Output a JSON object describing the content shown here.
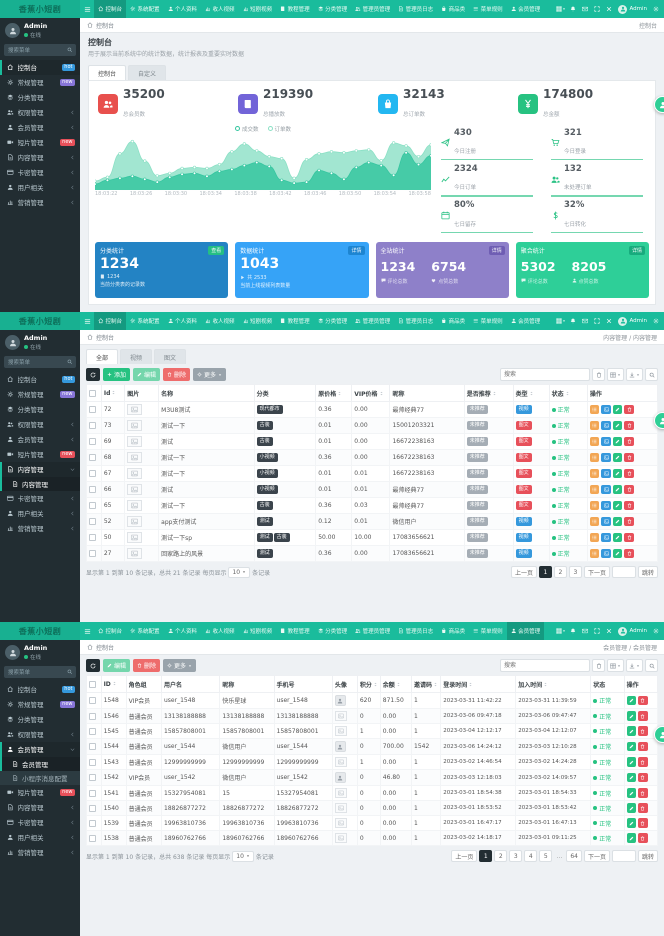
{
  "brand": "香蕉小短剧",
  "colors": {
    "navbar": "#1abc9c",
    "navbar_active": "#149a80",
    "sidebar": "#222d32",
    "success": "#26c281",
    "danger": "#e7505a",
    "warning": "#f2a654",
    "info": "#3598dc"
  },
  "navbar": {
    "user": "Admin",
    "menu": [
      {
        "label": "控制台",
        "icon": "home-icon"
      },
      {
        "label": "系统配置",
        "icon": "gear-icon"
      },
      {
        "label": "个人资料",
        "icon": "user-icon"
      },
      {
        "label": "收人视频",
        "icon": "chart-icon"
      },
      {
        "label": "短剧视频",
        "icon": "chart-icon"
      },
      {
        "label": "教程管理",
        "icon": "book-icon"
      },
      {
        "label": "分类管理",
        "icon": "layers-icon"
      },
      {
        "label": "管理员管理",
        "icon": "users-icon"
      },
      {
        "label": "管理员日志",
        "icon": "file-icon"
      },
      {
        "label": "商品类",
        "icon": "bag-icon"
      },
      {
        "label": "菜单规则",
        "icon": "menu-icon"
      },
      {
        "label": "会员管理",
        "icon": "user-icon"
      }
    ]
  },
  "sidebar": {
    "user_name": "Admin",
    "user_status": "在线",
    "search_placeholder": "搜索菜单",
    "menu": [
      {
        "label": "控制台",
        "icon": "home-icon",
        "badge": "hot",
        "badge_color": "#3598dc"
      },
      {
        "label": "常规管理",
        "icon": "gear-icon",
        "badge": "new",
        "badge_color": "#8775d8"
      },
      {
        "label": "分类管理",
        "icon": "layers-icon"
      },
      {
        "label": "权限管理",
        "icon": "users-icon",
        "arrow": true
      },
      {
        "label": "会员管理",
        "icon": "user-icon",
        "arrow": true
      },
      {
        "label": "短片管理",
        "icon": "video-icon",
        "badge": "new",
        "badge_color": "#e7505a"
      },
      {
        "label": "内容管理",
        "icon": "file-icon",
        "arrow": true
      },
      {
        "label": "卡密管理",
        "icon": "card-icon",
        "arrow": true
      },
      {
        "label": "用户相关",
        "icon": "user-icon",
        "arrow": true
      },
      {
        "label": "营销管理",
        "icon": "chart-icon",
        "arrow": true
      }
    ]
  },
  "panels": [
    {
      "type": "dashboard",
      "nav_active": 0,
      "sidebar": {
        "active": 0
      },
      "breadcrumb": {
        "home": "控制台",
        "trail": "控制台"
      },
      "header": {
        "title": "控制台",
        "subtitle": "用于展示当前系统中的统计数据，统计报表及重要实时数据"
      },
      "tabs": [
        {
          "label": "控制台",
          "active": true
        },
        {
          "label": "自定义",
          "active": false
        }
      ],
      "stat_cards": [
        {
          "icon": "users-icon",
          "color": "#e8504d",
          "value": "35200",
          "label": "总会员数"
        },
        {
          "icon": "book-icon",
          "color": "#7264d8",
          "value": "219390",
          "label": "总播放数"
        },
        {
          "icon": "bag-icon",
          "color": "#23b7f1",
          "value": "32143",
          "label": "总订单数"
        },
        {
          "icon": "yen-icon",
          "color": "#27c281",
          "value": "174800",
          "label": "总金额"
        }
      ],
      "chart_data": {
        "type": "area",
        "title": "",
        "legend": [
          "成交数",
          "订单数"
        ],
        "x_ticks": [
          "18:03:22",
          "18:03:26",
          "18:03:30",
          "18:03:34",
          "18:03:38",
          "18:03:42",
          "18:03:46",
          "18:03:50",
          "18:03:54",
          "18:03:58"
        ],
        "ylim": [
          0,
          100
        ],
        "grid": false,
        "legend_position": "top",
        "series": [
          {
            "name": "订单数",
            "color": "#8be0c5",
            "values": [
              14,
              22,
              70,
              95,
              55,
              25,
              30,
              40,
              42,
              40,
              48,
              74,
              90,
              76,
              64,
              60,
              20,
              58,
              70,
              74,
              72,
              76,
              78,
              56,
              92,
              86,
              64,
              88
            ]
          },
          {
            "name": "成交数",
            "color": "#36c6a0",
            "values": [
              8,
              16,
              20,
              24,
              18,
              12,
              22,
              28,
              30,
              24,
              34,
              38,
              46,
              52,
              44,
              16,
              10,
              12,
              36,
              30,
              18,
              42,
              52,
              46,
              26,
              72,
              48,
              66
            ]
          }
        ]
      },
      "mini_stats": [
        {
          "icon": "send-icon",
          "value": "430",
          "label": "今日注册"
        },
        {
          "icon": "cart-icon",
          "value": "321",
          "label": "今日登录"
        },
        {
          "icon": "line-icon",
          "value": "2324",
          "label": "今日订单"
        },
        {
          "icon": "group-icon",
          "value": "132",
          "label": "未处理订单"
        },
        {
          "icon": "calendar-icon",
          "value": "80%",
          "label": "七日留存"
        },
        {
          "icon": "dollar-icon",
          "value": "32%",
          "label": "七日转化"
        }
      ],
      "summary_cards": [
        {
          "bg": "#2383c4",
          "title": "分类统计",
          "badge": "查看",
          "badge_bg": "#26c281",
          "big": "1234",
          "foot_icon": "book-icon",
          "foot_text": "1234",
          "desc": "当前分类表的记录数"
        },
        {
          "bg": "#36a3f7",
          "title": "数据统计",
          "badge": "详情",
          "badge_bg": "#1d84cf",
          "big": "1043",
          "foot_icon": "play-icon",
          "foot_text": "共 2533",
          "desc": "当前上线视频列表数量"
        },
        {
          "bg": "#8e80c9",
          "title": "全站统计",
          "badge": "详情",
          "badge_bg": "#6e5cb3",
          "pairs": [
            {
              "value": "1234",
              "icon": "comment-icon",
              "label": "评论总数"
            },
            {
              "value": "6754",
              "icon": "heart-icon",
              "label": "点赞总数"
            }
          ]
        },
        {
          "bg": "#2ecf98",
          "title": "聚合统计",
          "badge": "详情",
          "badge_bg": "#17a97c",
          "pairs": [
            {
              "value": "5302",
              "icon": "comment-icon",
              "label": "评论总数"
            },
            {
              "value": "8205",
              "icon": "user-icon",
              "label": "点赞总数"
            }
          ]
        }
      ]
    },
    {
      "type": "content-table",
      "nav_active": 0,
      "sidebar": {
        "open_parent": 6,
        "children": [
          {
            "label": "内容管理",
            "active": true
          }
        ]
      },
      "breadcrumb": {
        "home": "控制台",
        "trail": "内容管理 / 内容管理"
      },
      "tabs": [
        {
          "label": "全部",
          "active": true
        },
        {
          "label": "视频",
          "active": false
        },
        {
          "label": "图文",
          "active": false
        }
      ],
      "toolbar": {
        "add": "添加",
        "edit": "编辑",
        "delete": "删除",
        "more": "更多"
      },
      "search_placeholder": "搜索",
      "columns": [
        "Id",
        "图片",
        "名称",
        "分类",
        "原价格",
        "VIP价格",
        "昵称",
        "是否推荐",
        "类型",
        "状态",
        "操作"
      ],
      "status_label": "正常",
      "recommend_label": "未推荐",
      "rows": [
        {
          "id": "72",
          "name": "M3U8测试",
          "cats": [
            "现代都市"
          ],
          "price": "0.36",
          "vip": "0.00",
          "nick": "最帅经典77",
          "type": "视频",
          "type_color": "blue"
        },
        {
          "id": "73",
          "name": "测试一下",
          "cats": [
            "古装"
          ],
          "price": "0.01",
          "vip": "0.00",
          "nick": "15001203321",
          "type": "图文",
          "type_color": "red"
        },
        {
          "id": "69",
          "name": "测试",
          "cats": [
            "古装"
          ],
          "price": "0.01",
          "vip": "0.00",
          "nick": "16672238163",
          "type": "图文",
          "type_color": "red"
        },
        {
          "id": "68",
          "name": "测试一下",
          "cats": [
            "小视频"
          ],
          "price": "0.36",
          "vip": "0.00",
          "nick": "16672238163",
          "type": "图文",
          "type_color": "red"
        },
        {
          "id": "67",
          "name": "测试一下",
          "cats": [
            "小视频"
          ],
          "price": "0.01",
          "vip": "0.01",
          "nick": "16672238163",
          "type": "图文",
          "type_color": "red"
        },
        {
          "id": "66",
          "name": "测试",
          "cats": [
            "小视频"
          ],
          "price": "0.01",
          "vip": "0.01",
          "nick": "最帅经典77",
          "type": "图文",
          "type_color": "red"
        },
        {
          "id": "65",
          "name": "测试一下",
          "cats": [
            "古装"
          ],
          "price": "0.36",
          "vip": "0.03",
          "nick": "最帅经典77",
          "type": "图文",
          "type_color": "red"
        },
        {
          "id": "52",
          "name": "app支付测试",
          "cats": [
            "测试"
          ],
          "price": "0.12",
          "vip": "0.01",
          "nick": "微信用户",
          "type": "视频",
          "type_color": "blue"
        },
        {
          "id": "50",
          "name": "测试一下sp",
          "cats": [
            "测试",
            "古装"
          ],
          "price": "50.00",
          "vip": "10.00",
          "nick": "17083656621",
          "type": "视频",
          "type_color": "blue"
        },
        {
          "id": "27",
          "name": "回家路上的风景",
          "cats": [
            "测试"
          ],
          "price": "0.36",
          "vip": "0.00",
          "nick": "17083656621",
          "type": "视频",
          "type_color": "blue"
        }
      ],
      "pagination": {
        "info": "显示第 1 到第 10 条记录，总共 21 条记录 每页显示",
        "page_size": "10",
        "info_suffix": "条记录",
        "prev": "上一页",
        "pages": [
          "1",
          "2",
          "3"
        ],
        "active_page": "1",
        "next": "下一页",
        "jump": "跳转"
      }
    },
    {
      "type": "member-table",
      "nav_active": 11,
      "sidebar": {
        "open_parent": 4,
        "children": [
          {
            "label": "会员管理",
            "active": true
          },
          {
            "label": "小程序消息配置",
            "active": false
          }
        ]
      },
      "breadcrumb": {
        "home": "控制台",
        "trail": "会员管理 / 会员管理"
      },
      "toolbar": {
        "edit": "编辑",
        "delete": "删除",
        "more": "更多"
      },
      "search_placeholder": "搜索",
      "columns": [
        "ID",
        "角色组",
        "用户名",
        "昵称",
        "手机号",
        "头像",
        "积分",
        "余额",
        "邀请码",
        "登录时间",
        "加入时间",
        "状态",
        "操作"
      ],
      "status_label": "正常",
      "rows": [
        {
          "id": "1548",
          "role": "VIP会员",
          "user": "user_1548",
          "nick": "快乐星球",
          "mobile": "user_1548",
          "avatar": "user",
          "score": "620",
          "money": "871.50",
          "invite": "1",
          "login": "2023-03-31 11:42:22",
          "join": "2023-03-31 11:39:59"
        },
        {
          "id": "1546",
          "role": "普通会员",
          "user": "13138188888",
          "nick": "13138188888",
          "mobile": "13138188888",
          "avatar": "img",
          "score": "0",
          "money": "0.00",
          "invite": "1",
          "login": "2023-03-06 09:47:18",
          "join": "2023-03-06 09:47:47"
        },
        {
          "id": "1545",
          "role": "普通会员",
          "user": "15857808001",
          "nick": "15857808001",
          "mobile": "15857808001",
          "avatar": "img",
          "score": "1",
          "money": "0.00",
          "invite": "1",
          "login": "2023-03-04 12:12:17",
          "join": "2023-03-04 12:12:07"
        },
        {
          "id": "1544",
          "role": "普通会员",
          "user": "user_1544",
          "nick": "微信用户",
          "mobile": "user_1544",
          "avatar": "user",
          "score": "0",
          "money": "700.00",
          "invite": "1542",
          "login": "2023-03-06 14:24:12",
          "join": "2023-03-03 12:10:28"
        },
        {
          "id": "1543",
          "role": "普通会员",
          "user": "12999999999",
          "nick": "12999999999",
          "mobile": "12999999999",
          "avatar": "img",
          "score": "1",
          "money": "0.00",
          "invite": "1",
          "login": "2023-03-02 14:46:54",
          "join": "2023-03-02 14:24:28"
        },
        {
          "id": "1542",
          "role": "VIP会员",
          "user": "user_1542",
          "nick": "微信用户",
          "mobile": "user_1542",
          "avatar": "user",
          "score": "0",
          "money": "46.80",
          "invite": "1",
          "login": "2023-03-03 12:18:03",
          "join": "2023-03-02 14:09:57"
        },
        {
          "id": "1541",
          "role": "普通会员",
          "user": "15327954081",
          "nick": "15",
          "mobile": "15327954081",
          "avatar": "img",
          "score": "0",
          "money": "0.00",
          "invite": "1",
          "login": "2023-03-01 18:54:38",
          "join": "2023-03-01 18:54:33"
        },
        {
          "id": "1540",
          "role": "普通会员",
          "user": "18826877272",
          "nick": "18826877272",
          "mobile": "18826877272",
          "avatar": "img",
          "score": "0",
          "money": "0.00",
          "invite": "1",
          "login": "2023-03-01 18:53:52",
          "join": "2023-03-01 18:53:42"
        },
        {
          "id": "1539",
          "role": "普通会员",
          "user": "19963810736",
          "nick": "19963810736",
          "mobile": "19963810736",
          "avatar": "img",
          "score": "0",
          "money": "0.00",
          "invite": "1",
          "login": "2023-03-01 16:47:17",
          "join": "2023-03-01 16:47:13"
        },
        {
          "id": "1538",
          "role": "普通会员",
          "user": "18960762766",
          "nick": "18960762766",
          "mobile": "18960762766",
          "avatar": "img",
          "score": "0",
          "money": "0.00",
          "invite": "1",
          "login": "2023-03-02 14:18:17",
          "join": "2023-03-01 09:11:25"
        }
      ],
      "pagination": {
        "info": "显示第 1 到第 10 条记录，总共 638 条记录 每页显示",
        "page_size": "10",
        "info_suffix": "条记录",
        "prev": "上一页",
        "pages": [
          "1",
          "2",
          "3",
          "4",
          "5",
          "...",
          "64"
        ],
        "active_page": "1",
        "next": "下一页",
        "jump": "跳转"
      }
    }
  ]
}
